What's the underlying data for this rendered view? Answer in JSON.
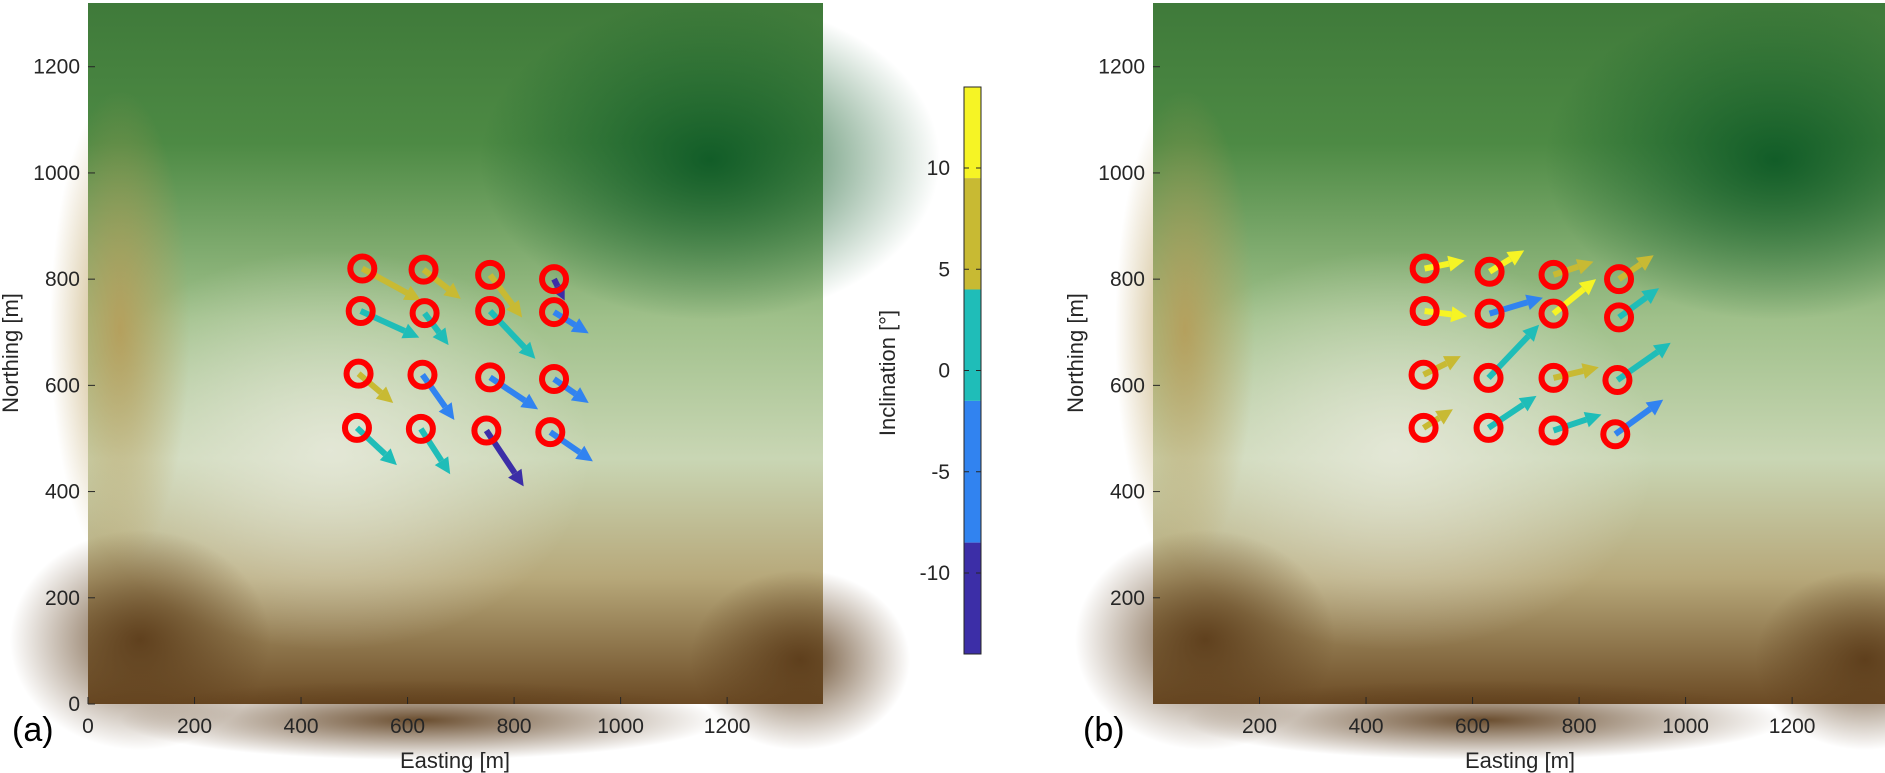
{
  "chart_data": [
    {
      "type": "scatter",
      "panel_label": "(a)",
      "xlabel": "Easting [m]",
      "ylabel": "Northing [m]",
      "xlim": [
        0,
        1380
      ],
      "ylim": [
        0,
        1320
      ],
      "xticks": [
        "0",
        "200",
        "400",
        "600",
        "800",
        "1000",
        "1200"
      ],
      "yticks": [
        "0",
        "200",
        "400",
        "600",
        "800",
        "1000",
        "1200"
      ],
      "marker": "red circle",
      "vectors": [
        {
          "x": 515,
          "y": 820,
          "dx": 110,
          "dy": -60,
          "inclination": 7
        },
        {
          "x": 630,
          "y": 818,
          "dx": 70,
          "dy": -55,
          "inclination": 7
        },
        {
          "x": 755,
          "y": 808,
          "dx": 60,
          "dy": -80,
          "inclination": 7
        },
        {
          "x": 875,
          "y": 800,
          "dx": 20,
          "dy": -40,
          "inclination": -12
        },
        {
          "x": 512,
          "y": 740,
          "dx": 110,
          "dy": -50,
          "inclination": 1
        },
        {
          "x": 632,
          "y": 736,
          "dx": 45,
          "dy": -60,
          "inclination": 1
        },
        {
          "x": 755,
          "y": 740,
          "dx": 85,
          "dy": -90,
          "inclination": 1
        },
        {
          "x": 875,
          "y": 738,
          "dx": 65,
          "dy": -40,
          "inclination": -6
        },
        {
          "x": 508,
          "y": 622,
          "dx": 65,
          "dy": -55,
          "inclination": 7
        },
        {
          "x": 628,
          "y": 620,
          "dx": 60,
          "dy": -85,
          "inclination": -6
        },
        {
          "x": 755,
          "y": 615,
          "dx": 90,
          "dy": -60,
          "inclination": -6
        },
        {
          "x": 875,
          "y": 612,
          "dx": 65,
          "dy": -45,
          "inclination": -6
        },
        {
          "x": 505,
          "y": 520,
          "dx": 75,
          "dy": -70,
          "inclination": 1
        },
        {
          "x": 625,
          "y": 518,
          "dx": 55,
          "dy": -85,
          "inclination": 1
        },
        {
          "x": 748,
          "y": 515,
          "dx": 70,
          "dy": -105,
          "inclination": -12
        },
        {
          "x": 868,
          "y": 512,
          "dx": 80,
          "dy": -55,
          "inclination": -6
        }
      ]
    },
    {
      "type": "scatter",
      "panel_label": "(b)",
      "xlabel": "Easting [m]",
      "ylabel": "Northing [m]",
      "xlim": [
        0,
        1380
      ],
      "ylim": [
        0,
        1320
      ],
      "xticks": [
        "200",
        "400",
        "600",
        "800",
        "1000",
        "1200"
      ],
      "yticks": [
        "200",
        "400",
        "600",
        "800",
        "1000",
        "1200"
      ],
      "marker": "red circle",
      "vectors": [
        {
          "x": 510,
          "y": 820,
          "dx": 75,
          "dy": 15,
          "inclination": 12
        },
        {
          "x": 632,
          "y": 814,
          "dx": 65,
          "dy": 40,
          "inclination": 12
        },
        {
          "x": 752,
          "y": 808,
          "dx": 75,
          "dy": 25,
          "inclination": 7
        },
        {
          "x": 875,
          "y": 800,
          "dx": 65,
          "dy": 45,
          "inclination": 7
        },
        {
          "x": 510,
          "y": 740,
          "dx": 80,
          "dy": -10,
          "inclination": 12
        },
        {
          "x": 632,
          "y": 735,
          "dx": 100,
          "dy": 30,
          "inclination": -6
        },
        {
          "x": 752,
          "y": 735,
          "dx": 80,
          "dy": 65,
          "inclination": 12
        },
        {
          "x": 875,
          "y": 728,
          "dx": 75,
          "dy": 55,
          "inclination": 1
        },
        {
          "x": 508,
          "y": 620,
          "dx": 70,
          "dy": 35,
          "inclination": 7
        },
        {
          "x": 630,
          "y": 614,
          "dx": 95,
          "dy": 100,
          "inclination": 1
        },
        {
          "x": 752,
          "y": 614,
          "dx": 85,
          "dy": 20,
          "inclination": 7
        },
        {
          "x": 872,
          "y": 610,
          "dx": 100,
          "dy": 70,
          "inclination": 1
        },
        {
          "x": 508,
          "y": 520,
          "dx": 55,
          "dy": 35,
          "inclination": 7
        },
        {
          "x": 630,
          "y": 520,
          "dx": 90,
          "dy": 60,
          "inclination": 1
        },
        {
          "x": 752,
          "y": 515,
          "dx": 90,
          "dy": 30,
          "inclination": 1
        },
        {
          "x": 868,
          "y": 508,
          "dx": 90,
          "dy": 65,
          "inclination": -6
        }
      ]
    }
  ],
  "colorbar": {
    "label": "Inclination [°]",
    "range": [
      -14,
      14
    ],
    "ticks": [
      "10",
      "5",
      "0",
      "-5",
      "-10"
    ],
    "tick_values": [
      10,
      5,
      0,
      -5,
      -10
    ],
    "bins": [
      {
        "from": 9.5,
        "to": 14,
        "color": "#f6f425"
      },
      {
        "from": 4,
        "to": 9.5,
        "color": "#c8ba33"
      },
      {
        "from": -1.5,
        "to": 4,
        "color": "#1fbdb8"
      },
      {
        "from": -8.5,
        "to": -1.5,
        "color": "#3183f0"
      },
      {
        "from": -14,
        "to": -8.5,
        "color": "#3c2ea7"
      }
    ]
  },
  "colors": {
    "marker": "#ff0000",
    "tick_text": "#262626"
  }
}
